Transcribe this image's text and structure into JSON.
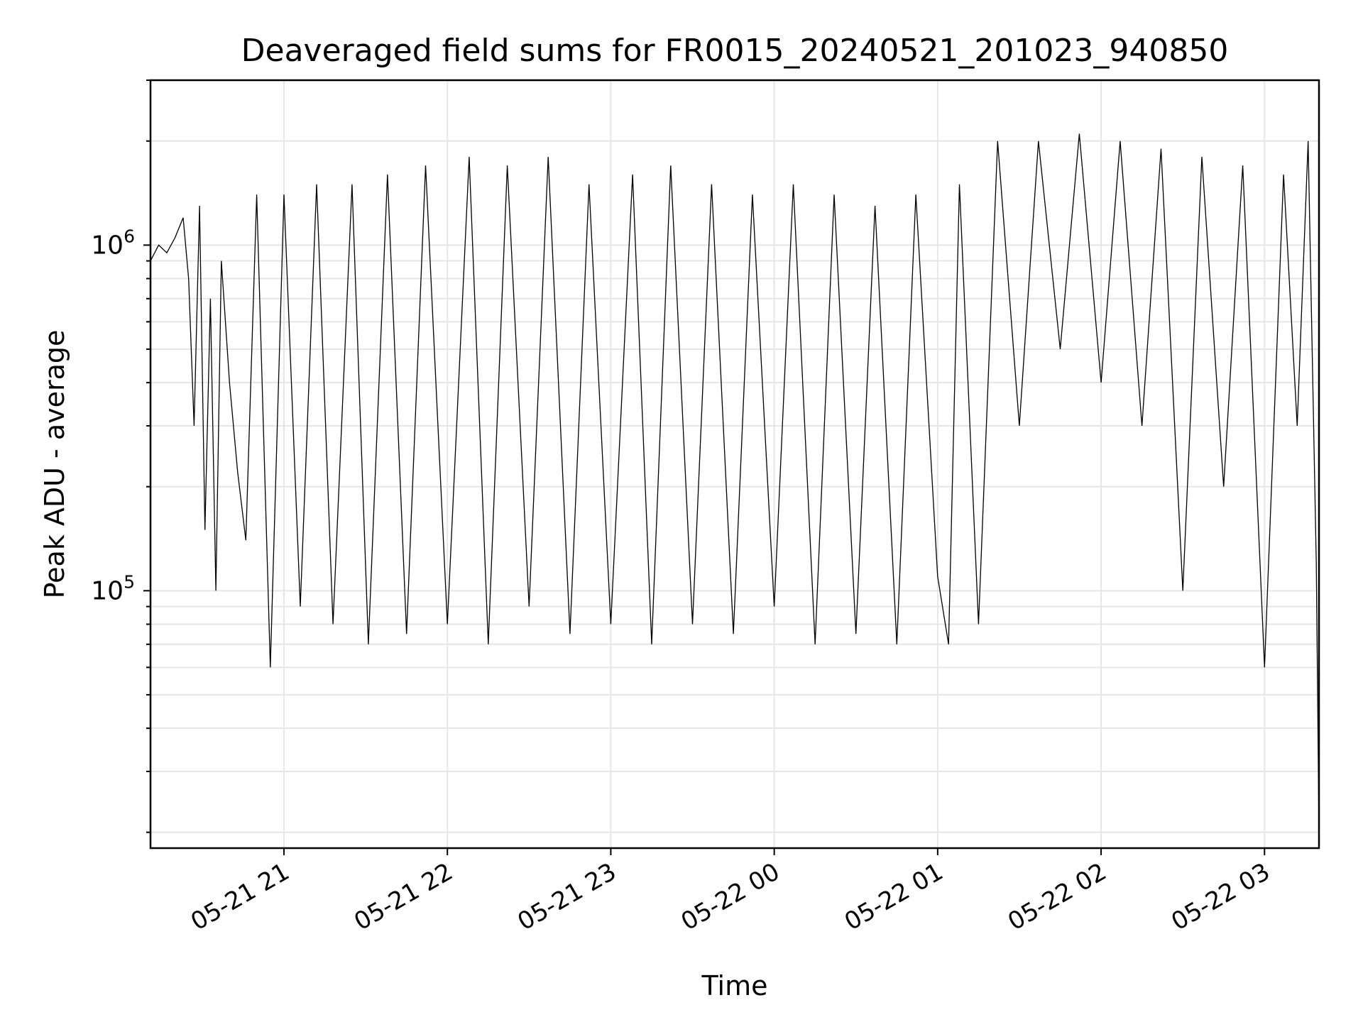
{
  "chart_data": {
    "type": "line",
    "title": "Deaveraged field sums for FR0015_20240521_201023_940850",
    "xlabel": "Time",
    "ylabel": "Peak ADU - average",
    "yscale": "log",
    "grid": true,
    "legend": "none",
    "x_range": [
      "2024-05-21 20:11",
      "2024-05-22 03:20"
    ],
    "ylim": [
      18000,
      3000000
    ],
    "x_ticks": [
      {
        "value": "2024-05-21 21:00",
        "label": "05-21 21"
      },
      {
        "value": "2024-05-21 22:00",
        "label": "05-21 22"
      },
      {
        "value": "2024-05-21 23:00",
        "label": "05-21 23"
      },
      {
        "value": "2024-05-22 00:00",
        "label": "05-22 00"
      },
      {
        "value": "2024-05-22 01:00",
        "label": "05-22 01"
      },
      {
        "value": "2024-05-22 02:00",
        "label": "05-22 02"
      },
      {
        "value": "2024-05-22 03:00",
        "label": "05-22 03"
      }
    ],
    "y_ticks": [
      {
        "value": 100000,
        "base": "10",
        "exp": "5"
      },
      {
        "value": 1000000,
        "base": "10",
        "exp": "6"
      }
    ],
    "series": [
      {
        "color": "#000000",
        "x": [
          "2024-05-21 20:11",
          "2024-05-21 20:14",
          "2024-05-21 20:17",
          "2024-05-21 20:20",
          "2024-05-21 20:23",
          "2024-05-21 20:25",
          "2024-05-21 20:27",
          "2024-05-21 20:29",
          "2024-05-21 20:31",
          "2024-05-21 20:33",
          "2024-05-21 20:35",
          "2024-05-21 20:37",
          "2024-05-21 20:40",
          "2024-05-21 20:43",
          "2024-05-21 20:46",
          "2024-05-21 20:50",
          "2024-05-21 20:55",
          "2024-05-21 21:00",
          "2024-05-21 21:06",
          "2024-05-21 21:12",
          "2024-05-21 21:18",
          "2024-05-21 21:25",
          "2024-05-21 21:31",
          "2024-05-21 21:38",
          "2024-05-21 21:45",
          "2024-05-21 21:52",
          "2024-05-21 22:00",
          "2024-05-21 22:08",
          "2024-05-21 22:15",
          "2024-05-21 22:22",
          "2024-05-21 22:30",
          "2024-05-21 22:37",
          "2024-05-21 22:45",
          "2024-05-21 22:52",
          "2024-05-21 23:00",
          "2024-05-21 23:08",
          "2024-05-21 23:15",
          "2024-05-21 23:22",
          "2024-05-21 23:30",
          "2024-05-21 23:37",
          "2024-05-21 23:45",
          "2024-05-21 23:52",
          "2024-05-22 00:00",
          "2024-05-22 00:07",
          "2024-05-22 00:15",
          "2024-05-22 00:22",
          "2024-05-22 00:30",
          "2024-05-22 00:37",
          "2024-05-22 00:45",
          "2024-05-22 00:52",
          "2024-05-22 01:00",
          "2024-05-22 01:04",
          "2024-05-22 01:08",
          "2024-05-22 01:15",
          "2024-05-22 01:22",
          "2024-05-22 01:30",
          "2024-05-22 01:37",
          "2024-05-22 01:45",
          "2024-05-22 01:52",
          "2024-05-22 02:00",
          "2024-05-22 02:07",
          "2024-05-22 02:15",
          "2024-05-22 02:22",
          "2024-05-22 02:30",
          "2024-05-22 02:37",
          "2024-05-22 02:45",
          "2024-05-22 02:52",
          "2024-05-22 03:00",
          "2024-05-22 03:07",
          "2024-05-22 03:12",
          "2024-05-22 03:16",
          "2024-05-22 03:19",
          "2024-05-22 03:20"
        ],
        "y": [
          900000,
          1000000,
          950000,
          1050000,
          1200000,
          800000,
          300000,
          1300000,
          150000,
          700000,
          100000,
          900000,
          400000,
          220000,
          140000,
          1400000,
          60000,
          1400000,
          90000,
          1500000,
          80000,
          1500000,
          70000,
          1600000,
          75000,
          1700000,
          80000,
          1800000,
          70000,
          1700000,
          90000,
          1800000,
          75000,
          1500000,
          80000,
          1600000,
          70000,
          1700000,
          80000,
          1500000,
          75000,
          1400000,
          90000,
          1500000,
          70000,
          1400000,
          75000,
          1300000,
          70000,
          1400000,
          110000,
          70000,
          1500000,
          80000,
          2000000,
          300000,
          2000000,
          500000,
          2100000,
          400000,
          2000000,
          300000,
          1900000,
          100000,
          1800000,
          200000,
          1700000,
          60000,
          1600000,
          300000,
          2000000,
          120000,
          20000
        ]
      }
    ]
  }
}
